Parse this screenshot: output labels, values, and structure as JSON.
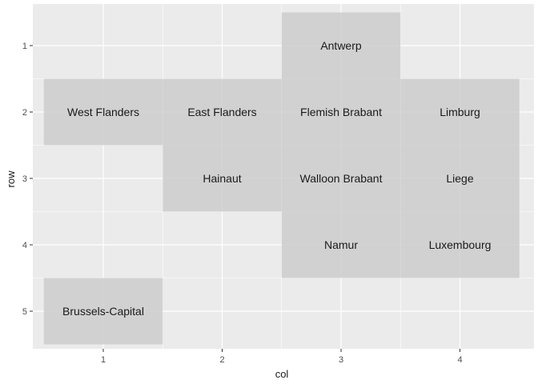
{
  "chart_data": {
    "type": "heatmap",
    "xlabel": "col",
    "ylabel": "row",
    "xlim": [
      0.5,
      4.5
    ],
    "ylim": [
      0.5,
      5.5
    ],
    "y_reversed": true,
    "x_ticks": [
      "1",
      "2",
      "3",
      "4"
    ],
    "y_ticks": [
      "1",
      "2",
      "3",
      "4",
      "5"
    ],
    "grid": true,
    "panel_color": "#ebebeb",
    "tile_color": "#cccccc",
    "tiles": [
      {
        "col": 3,
        "row": 1,
        "label": "Antwerp"
      },
      {
        "col": 1,
        "row": 2,
        "label": "West Flanders"
      },
      {
        "col": 2,
        "row": 2,
        "label": "East Flanders"
      },
      {
        "col": 3,
        "row": 2,
        "label": "Flemish Brabant"
      },
      {
        "col": 4,
        "row": 2,
        "label": "Limburg"
      },
      {
        "col": 2,
        "row": 3,
        "label": "Hainaut"
      },
      {
        "col": 3,
        "row": 3,
        "label": "Walloon Brabant"
      },
      {
        "col": 4,
        "row": 3,
        "label": "Liege"
      },
      {
        "col": 3,
        "row": 4,
        "label": "Namur"
      },
      {
        "col": 4,
        "row": 4,
        "label": "Luxembourg"
      },
      {
        "col": 1,
        "row": 5,
        "label": "Brussels-Capital"
      }
    ]
  }
}
